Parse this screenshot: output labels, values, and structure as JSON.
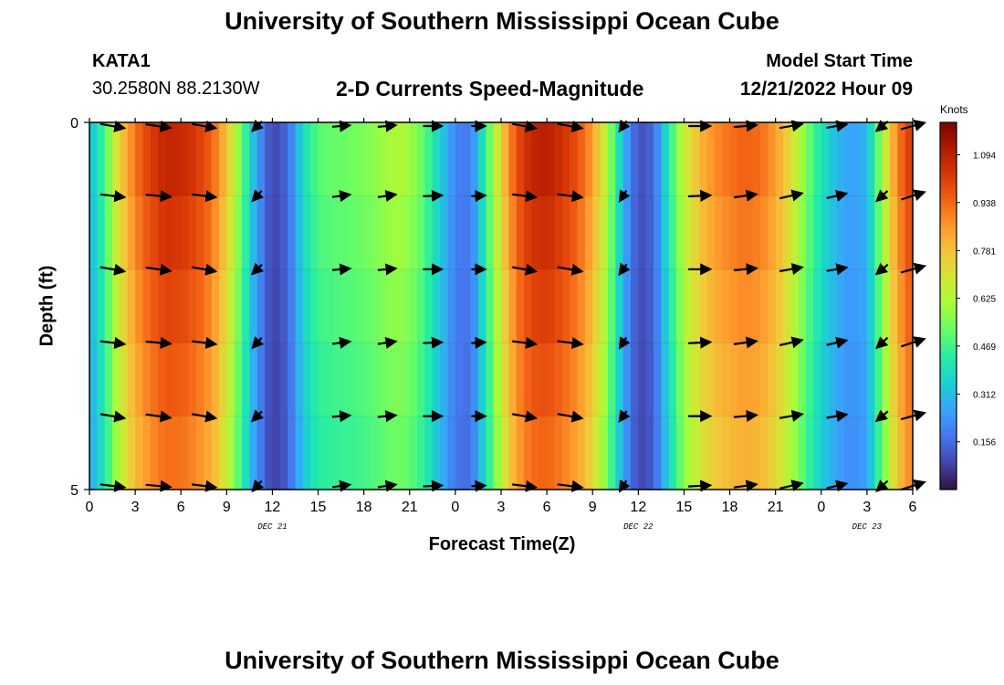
{
  "header": {
    "title": "University of Southern Mississippi Ocean Cube",
    "station": "KATA1",
    "coordinates": "30.2580N  88.2130W",
    "model_start_label": "Model Start Time",
    "model_start_value": "12/21/2022 Hour 09"
  },
  "footer": {
    "title": "University of Southern Mississippi Ocean Cube"
  },
  "chart_data": {
    "type": "heatmap",
    "title": "2-D Currents Speed-Magnitude",
    "xlabel": "Forecast Time(Z)",
    "ylabel": "Depth (ft)",
    "x_range_hours": [
      0,
      54
    ],
    "y_range_ft": [
      0,
      5
    ],
    "x_tick_labels": [
      "0",
      "3",
      "6",
      "9",
      "12",
      "15",
      "18",
      "21",
      "0",
      "3",
      "6",
      "9",
      "12",
      "15",
      "18",
      "21",
      "0",
      "3",
      "6"
    ],
    "y_tick_labels": [
      "0",
      "5"
    ],
    "date_labels": [
      {
        "label": "DEC 21",
        "hour": 12
      },
      {
        "label": "DEC 22",
        "hour": 36
      },
      {
        "label": "DEC 23",
        "hour": 51
      }
    ],
    "colorbar": {
      "title": "Knots",
      "min": 0,
      "max": 1.2,
      "ticks": [
        "1.094",
        "0.938",
        "0.781",
        "0.625",
        "0.469",
        "0.312",
        "0.156"
      ],
      "tick_values": [
        1.094,
        0.938,
        0.781,
        0.625,
        0.469,
        0.312,
        0.156
      ],
      "colors": [
        "#30123b",
        "#4145ab",
        "#4675ed",
        "#39a2fc",
        "#1bcfd4",
        "#24eca6",
        "#61fc6c",
        "#a4fc3b",
        "#d1e834",
        "#f3c63a",
        "#fe9b2d",
        "#f36315",
        "#d93806",
        "#b11901",
        "#7a0402"
      ]
    },
    "depth_rows_ft": [
      0,
      1,
      2,
      3,
      4,
      5
    ],
    "speed_profile": {
      "hours": [
        0,
        1,
        2,
        3,
        4,
        5,
        6,
        7,
        8,
        9,
        10,
        11,
        12,
        13,
        14,
        15,
        16,
        17,
        18,
        19,
        20,
        21,
        22,
        23,
        24,
        25,
        26,
        27,
        28,
        29,
        30,
        31,
        32,
        33,
        34,
        35,
        36,
        37,
        38,
        39,
        40,
        41,
        42,
        43,
        44,
        45,
        46,
        47,
        48,
        49,
        50,
        51,
        52,
        53,
        54
      ],
      "values": [
        0.3,
        0.48,
        0.75,
        0.92,
        1.02,
        1.08,
        1.07,
        1.03,
        0.95,
        0.78,
        0.52,
        0.25,
        0.08,
        0.15,
        0.38,
        0.5,
        0.52,
        0.53,
        0.55,
        0.58,
        0.62,
        0.6,
        0.5,
        0.35,
        0.2,
        0.18,
        0.45,
        0.75,
        0.98,
        1.08,
        1.1,
        1.05,
        0.98,
        0.85,
        0.62,
        0.3,
        0.1,
        0.15,
        0.42,
        0.66,
        0.8,
        0.88,
        0.92,
        0.95,
        0.93,
        0.85,
        0.72,
        0.55,
        0.4,
        0.3,
        0.25,
        0.3,
        0.6,
        0.9,
        1.05
      ]
    },
    "vectors": {
      "hours": [
        1.5,
        4.5,
        7.5,
        11,
        16.5,
        19.5,
        22.5,
        25.5,
        28.5,
        31.5,
        35,
        40,
        43,
        46,
        49,
        52,
        54
      ],
      "directions_deg": [
        -10,
        -8,
        -10,
        -135,
        5,
        5,
        0,
        0,
        -10,
        -10,
        -125,
        0,
        5,
        10,
        10,
        -140,
        15
      ],
      "magnitude_knots": [
        1.05,
        1.08,
        1.02,
        0.2,
        0.52,
        0.55,
        0.6,
        0.22,
        1.0,
        1.08,
        0.12,
        0.86,
        0.92,
        0.93,
        0.72,
        0.3,
        1.05
      ]
    }
  }
}
